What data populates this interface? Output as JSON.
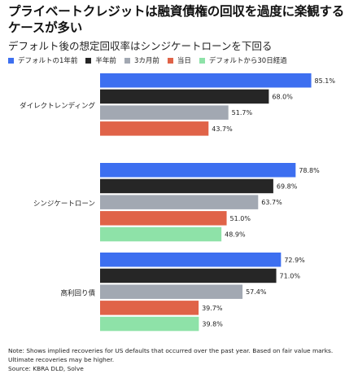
{
  "chart_data": {
    "type": "bar",
    "orientation": "horizontal",
    "title": "プライベートクレジットは融資債権の回収を過度に楽観するケースが多い",
    "subtitle": "デフォルト後の想定回収率はシンジケートローンを下回る",
    "categories": [
      "ダイレクトレンディング",
      "シンジケートローン",
      "高利回り債"
    ],
    "series": [
      {
        "name": "デフォルトの1年前",
        "color": "#3d6ff0",
        "values": [
          85.1,
          78.8,
          72.9
        ],
        "labels": [
          "85.1%",
          "78.8%",
          "72.9%"
        ]
      },
      {
        "name": "半年前",
        "color": "#262626",
        "values": [
          68.0,
          69.8,
          71.0
        ],
        "labels": [
          "68.0%",
          "69.8%",
          "71.0%"
        ]
      },
      {
        "name": "3カ月前",
        "color": "#a2a8b2",
        "values": [
          51.7,
          63.7,
          57.4
        ],
        "labels": [
          "51.7%",
          "63.7%",
          "57.4%"
        ]
      },
      {
        "name": "当日",
        "color": "#e06348",
        "values": [
          43.7,
          51.0,
          39.7
        ],
        "labels": [
          "43.7%",
          "51.0%",
          "39.7%"
        ]
      },
      {
        "name": "デフォルトから30日経過",
        "color": "#8ee2a8",
        "values": [
          null,
          48.9,
          39.8
        ],
        "labels": [
          null,
          "48.9%",
          "39.8%"
        ]
      }
    ],
    "xlim": [
      0,
      100
    ],
    "grid": false,
    "legend_position": "top-left"
  },
  "footnote": {
    "note": "Note: Shows implied recoveries for US defaults that occurred over the past year. Based on fair value marks. Ultimate recoveries may be higher.",
    "source": "Source: KBRA DLD, Solve"
  }
}
